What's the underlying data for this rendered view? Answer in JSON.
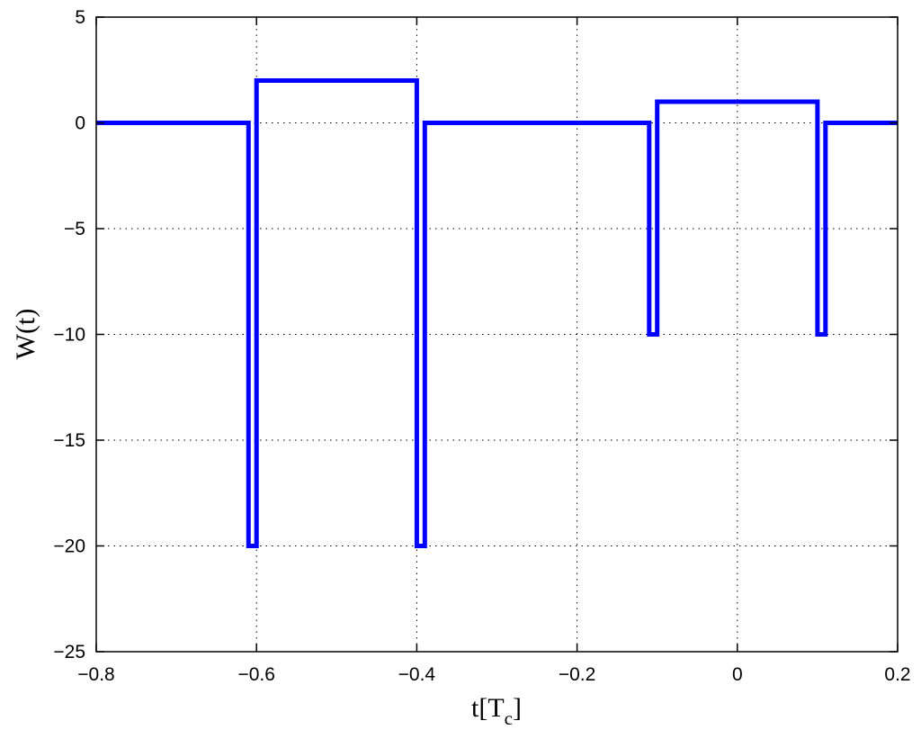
{
  "chart_data": {
    "type": "line",
    "title": "",
    "xlabel": {
      "main": "t[T",
      "sub": "c",
      "close": "]"
    },
    "ylabel": "W(t)",
    "xlim": [
      -0.8,
      0.2
    ],
    "ylim": [
      -25,
      5
    ],
    "xticks": [
      -0.8,
      -0.6,
      -0.4,
      -0.2,
      0,
      0.2
    ],
    "xtick_labels": [
      "−0.8",
      "−0.6",
      "−0.4",
      "−0.2",
      "0",
      "0.2"
    ],
    "yticks": [
      5,
      0,
      -5,
      -10,
      -15,
      -20,
      -25
    ],
    "ytick_labels": [
      "5",
      "0",
      "−5",
      "−10",
      "−15",
      "−20",
      "−25"
    ],
    "grid": true,
    "series": [
      {
        "color": "#0000ff",
        "x": [
          -0.8,
          -0.61,
          -0.61,
          -0.6,
          -0.6,
          -0.4,
          -0.4,
          -0.39,
          -0.39,
          -0.11,
          -0.11,
          -0.1,
          -0.1,
          0.1,
          0.1,
          0.11,
          0.11,
          0.2
        ],
        "y": [
          0,
          0,
          -20,
          -20,
          2,
          2,
          -20,
          -20,
          0,
          0,
          -10,
          -10,
          1,
          1,
          -10,
          -10,
          0,
          0
        ]
      }
    ]
  }
}
